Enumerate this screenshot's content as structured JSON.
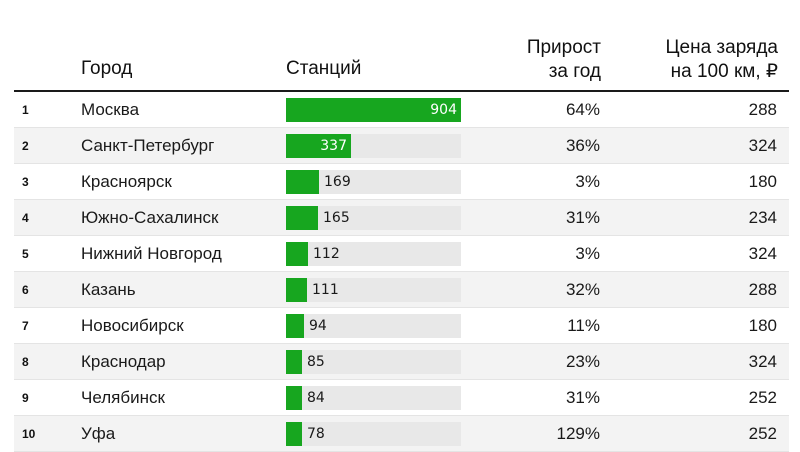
{
  "header": {
    "city": "Город",
    "stations": "Станций",
    "growth_line1": "Прирост",
    "growth_line2": "за год",
    "price_line1": "Цена заряда",
    "price_line2": "на 100 км, ₽"
  },
  "chart_data": {
    "type": "table",
    "columns": [
      "Город",
      "Станций",
      "Прирост за год",
      "Цена заряда на 100 км, ₽"
    ],
    "bar_max": 904,
    "rows": [
      {
        "rank": "1",
        "city": "Москва",
        "stations": 904,
        "growth": "64%",
        "price": "288"
      },
      {
        "rank": "2",
        "city": "Санкт-Петербург",
        "stations": 337,
        "growth": "36%",
        "price": "324"
      },
      {
        "rank": "3",
        "city": "Красноярск",
        "stations": 169,
        "growth": "3%",
        "price": "180"
      },
      {
        "rank": "4",
        "city": "Южно-Сахалинск",
        "stations": 165,
        "growth": "31%",
        "price": "234"
      },
      {
        "rank": "5",
        "city": "Нижний Новгород",
        "stations": 112,
        "growth": "3%",
        "price": "324"
      },
      {
        "rank": "6",
        "city": "Казань",
        "stations": 111,
        "growth": "32%",
        "price": "288"
      },
      {
        "rank": "7",
        "city": "Новосибирск",
        "stations": 94,
        "growth": "11%",
        "price": "180"
      },
      {
        "rank": "8",
        "city": "Краснодар",
        "stations": 85,
        "growth": "23%",
        "price": "324"
      },
      {
        "rank": "9",
        "city": "Челябинск",
        "stations": 84,
        "growth": "31%",
        "price": "252"
      },
      {
        "rank": "10",
        "city": "Уфа",
        "stations": 78,
        "growth": "129%",
        "price": "252"
      }
    ]
  },
  "colors": {
    "bar": "#17a61f",
    "track": "#e8e8e8",
    "alt_row": "#f3f3f3"
  }
}
